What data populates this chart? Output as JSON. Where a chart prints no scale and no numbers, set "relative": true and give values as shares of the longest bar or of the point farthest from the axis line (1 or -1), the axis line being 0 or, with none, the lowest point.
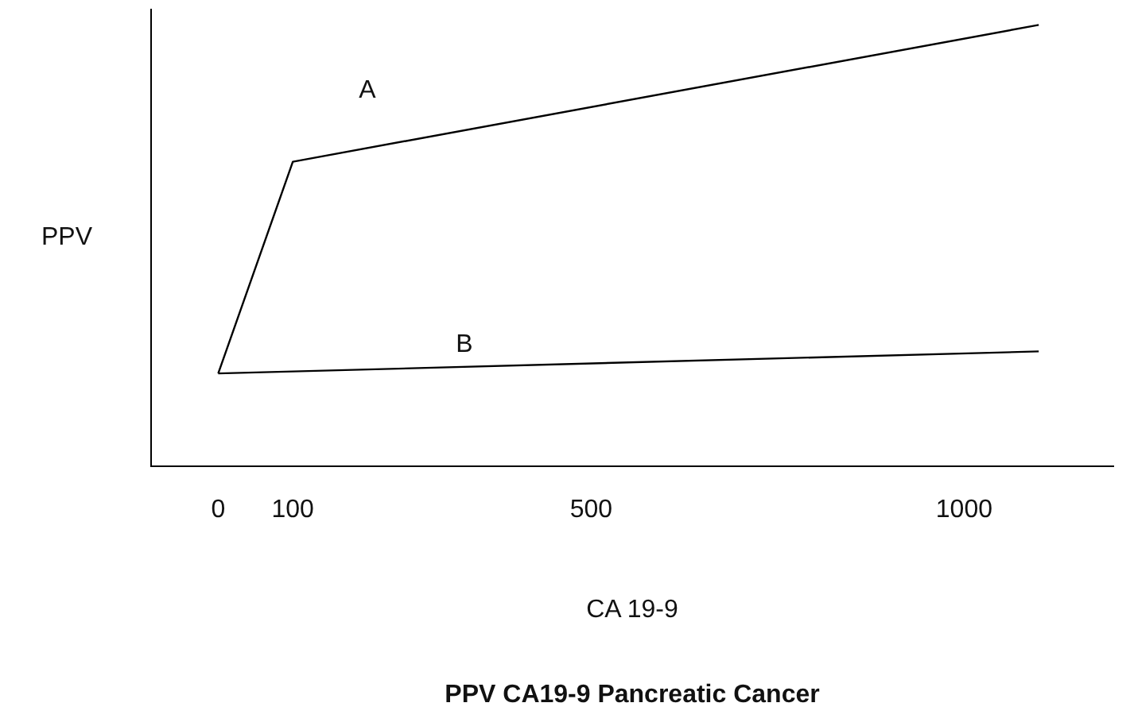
{
  "chart_data": {
    "type": "line",
    "title": "PPV CA19-9 Pancreatic Cancer",
    "xlabel": "CA 19-9",
    "ylabel": "PPV",
    "relative": true,
    "xlim": [
      -90,
      1200
    ],
    "xticks": [
      0,
      100,
      500,
      1000
    ],
    "grid": false,
    "legend": false,
    "marker": "none",
    "line_style": "solid",
    "series": [
      {
        "color": "#000000",
        "x": [
          0,
          100,
          1100
        ],
        "values": [
          0.21,
          0.69,
          1
        ]
      },
      {
        "color": "#000000",
        "x": [
          0,
          1100
        ],
        "values": [
          0.21,
          0.26
        ]
      }
    ],
    "annotations": [
      "A",
      "B"
    ]
  }
}
